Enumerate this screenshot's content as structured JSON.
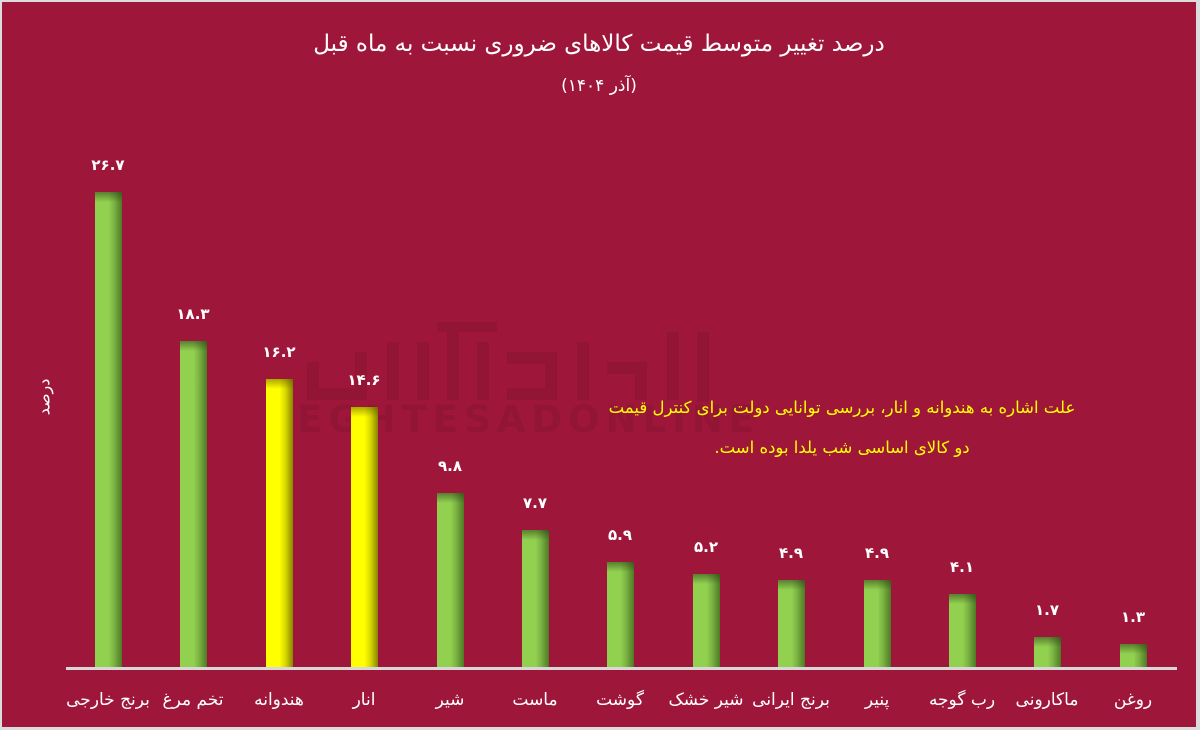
{
  "title": "درصد تغییر متوسط قیمت کالاهای ضروری نسبت به ماه قبل",
  "subtitle": "(آذر ۱۴۰۴)",
  "y_axis_label": "درصد",
  "annotation": {
    "line1": "علت اشاره به هندوانه و انار، بررسی توانایی دولت برای کنترل قیمت",
    "line2": "دو کالای اساسی شب یلدا بوده است."
  },
  "watermark": "EGHTESADONLINE",
  "colors": {
    "background": "#9E173B",
    "bar_default": "#92D050",
    "bar_highlight": "#FFFF00",
    "annotation_text": "#FFFF00",
    "text": "#FFFFFF"
  },
  "bars": [
    {
      "label": "برنج خارجی",
      "value_label": "۲۶.۷",
      "highlight": false
    },
    {
      "label": "تخم مرغ",
      "value_label": "۱۸.۳",
      "highlight": false
    },
    {
      "label": "هندوانه",
      "value_label": "۱۶.۲",
      "highlight": true
    },
    {
      "label": "انار",
      "value_label": "۱۴.۶",
      "highlight": true
    },
    {
      "label": "شیر",
      "value_label": "۹.۸",
      "highlight": false
    },
    {
      "label": "ماست",
      "value_label": "۷.۷",
      "highlight": false
    },
    {
      "label": "گوشت",
      "value_label": "۵.۹",
      "highlight": false
    },
    {
      "label": "شیر خشک",
      "value_label": "۵.۲",
      "highlight": false
    },
    {
      "label": "برنج ایرانی",
      "value_label": "۴.۹",
      "highlight": false
    },
    {
      "label": "پنیر",
      "value_label": "۴.۹",
      "highlight": false
    },
    {
      "label": "رب گوجه",
      "value_label": "۴.۱",
      "highlight": false
    },
    {
      "label": "ماکارونی",
      "value_label": "۱.۷",
      "highlight": false
    },
    {
      "label": "روغن",
      "value_label": "۱.۳",
      "highlight": false
    }
  ],
  "chart_data": {
    "type": "bar",
    "title": "درصد تغییر متوسط قیمت کالاهای ضروری نسبت به ماه قبل",
    "subtitle": "(آذر ۱۴۰۴)",
    "xlabel": "",
    "ylabel": "درصد",
    "categories": [
      "برنج خارجی",
      "تخم مرغ",
      "هندوانه",
      "انار",
      "شیر",
      "ماست",
      "گوشت",
      "شیر خشک",
      "برنج ایرانی",
      "پنیر",
      "رب گوجه",
      "ماکارونی",
      "روغن"
    ],
    "values": [
      26.7,
      18.3,
      16.2,
      14.6,
      9.8,
      7.7,
      5.9,
      5.2,
      4.9,
      4.9,
      4.1,
      1.7,
      1.3
    ],
    "highlighted_categories": [
      "هندوانه",
      "انار"
    ],
    "ylim": [
      0,
      27
    ],
    "grid": false,
    "legend": null,
    "data_labels": true,
    "annotations": [
      "علت اشاره به هندوانه و انار، بررسی توانایی دولت برای کنترل قیمت دو کالای اساسی شب یلدا بوده است."
    ]
  }
}
